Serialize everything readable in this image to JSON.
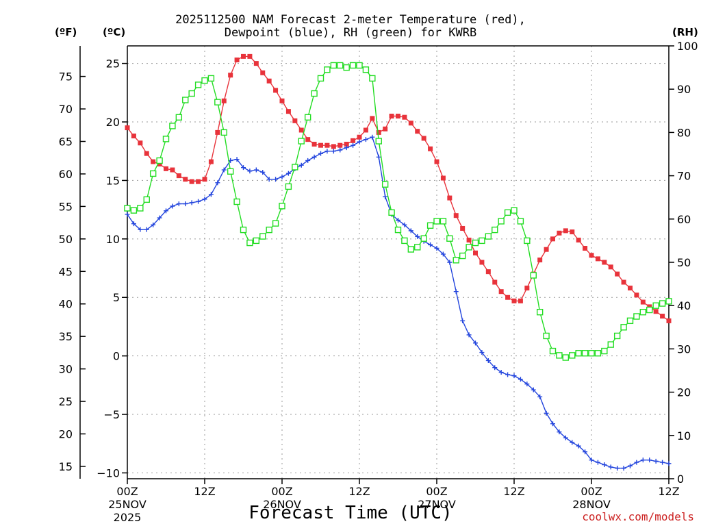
{
  "chart_data": {
    "type": "line",
    "title_line1": "2025112500 NAM Forecast 2-meter Temperature (red),",
    "title_line2": "Dewpoint (blue), RH (green) for KWRB",
    "xlabel": "Forecast Time (UTC)",
    "credit": "coolwx.com/models",
    "units": {
      "fahrenheit": "(ºF)",
      "celsius": "(ºC)",
      "rh": "(RH)"
    },
    "x_range_hours": [
      0,
      84
    ],
    "celsius_ticks": [
      "25",
      "20",
      "15",
      "10",
      "5",
      "0",
      "−5",
      "−10"
    ],
    "celsius_values": [
      25,
      20,
      15,
      10,
      5,
      0,
      -5,
      -10
    ],
    "ylim_celsius": [
      -10.5,
      26.5
    ],
    "fahrenheit_ticks": [
      "75",
      "70",
      "65",
      "60",
      "55",
      "50",
      "45",
      "40",
      "35",
      "30",
      "25",
      "20",
      "15"
    ],
    "fahrenheit_values": [
      75,
      70,
      65,
      60,
      55,
      50,
      45,
      40,
      35,
      30,
      25,
      20,
      15
    ],
    "rh_ticks": [
      "100",
      "90",
      "80",
      "70",
      "60",
      "50",
      "40",
      "30",
      "20",
      "10",
      "0"
    ],
    "rh_values": [
      100,
      90,
      80,
      70,
      60,
      50,
      40,
      30,
      20,
      10,
      0
    ],
    "ylim_rh": [
      0,
      100
    ],
    "x_ticks": [
      {
        "hour": 0,
        "label": "00Z",
        "date": "25NOV",
        "year": "2025"
      },
      {
        "hour": 12,
        "label": "12Z",
        "date": "",
        "year": ""
      },
      {
        "hour": 24,
        "label": "00Z",
        "date": "26NOV",
        "year": ""
      },
      {
        "hour": 36,
        "label": "12Z",
        "date": "",
        "year": ""
      },
      {
        "hour": 48,
        "label": "00Z",
        "date": "27NOV",
        "year": ""
      },
      {
        "hour": 60,
        "label": "12Z",
        "date": "",
        "year": ""
      },
      {
        "hour": 72,
        "label": "00Z",
        "date": "28NOV",
        "year": ""
      },
      {
        "hour": 84,
        "label": "12Z",
        "date": "",
        "year": ""
      }
    ],
    "series": [
      {
        "name": "Temperature",
        "unit": "C",
        "color": "#e8333b",
        "marker": "filled-square",
        "x": [
          0,
          1,
          2,
          3,
          4,
          5,
          6,
          7,
          8,
          9,
          10,
          11,
          12,
          13,
          14,
          15,
          16,
          17,
          18,
          19,
          20,
          21,
          22,
          23,
          24,
          25,
          26,
          27,
          28,
          29,
          30,
          31,
          32,
          33,
          34,
          35,
          36,
          37,
          38,
          39,
          40,
          41,
          42,
          43,
          44,
          45,
          46,
          47,
          48,
          49,
          50,
          51,
          52,
          53,
          54,
          55,
          56,
          57,
          58,
          59,
          60,
          61,
          62,
          63,
          64,
          65,
          66,
          67,
          68,
          69,
          70,
          71,
          72,
          73,
          74,
          75,
          76,
          77,
          78,
          79,
          80,
          81,
          82,
          83,
          84
        ],
        "values": [
          19.5,
          18.8,
          18.2,
          17.3,
          16.6,
          16.4,
          16.0,
          15.9,
          15.4,
          15.1,
          14.9,
          14.9,
          15.1,
          16.6,
          19.1,
          21.8,
          24.0,
          25.3,
          25.6,
          25.6,
          25.0,
          24.2,
          23.5,
          22.7,
          21.8,
          20.9,
          20.1,
          19.3,
          18.5,
          18.1,
          18.0,
          18.0,
          17.9,
          18.0,
          18.1,
          18.4,
          18.7,
          19.3,
          20.3,
          19.1,
          19.4,
          20.5,
          20.5,
          20.4,
          19.9,
          19.2,
          18.6,
          17.7,
          16.6,
          15.2,
          13.5,
          12.0,
          10.9,
          9.9,
          8.8,
          8.0,
          7.2,
          6.3,
          5.5,
          5.0,
          4.7,
          4.7,
          5.8,
          7.0,
          8.2,
          9.1,
          10.0,
          10.5,
          10.7,
          10.6,
          9.9,
          9.2,
          8.6,
          8.3,
          8.0,
          7.6,
          7.0,
          6.3,
          5.8,
          5.2,
          4.6,
          4.2,
          3.8,
          3.4,
          3.0
        ]
      },
      {
        "name": "Dewpoint",
        "unit": "C",
        "color": "#2244dd",
        "marker": "plus",
        "x": [
          0,
          1,
          2,
          3,
          4,
          5,
          6,
          7,
          8,
          9,
          10,
          11,
          12,
          13,
          14,
          15,
          16,
          17,
          18,
          19,
          20,
          21,
          22,
          23,
          24,
          25,
          26,
          27,
          28,
          29,
          30,
          31,
          32,
          33,
          34,
          35,
          36,
          37,
          38,
          39,
          40,
          41,
          42,
          43,
          44,
          45,
          46,
          47,
          48,
          49,
          50,
          51,
          52,
          53,
          54,
          55,
          56,
          57,
          58,
          59,
          60,
          61,
          62,
          63,
          64,
          65,
          66,
          67,
          68,
          69,
          70,
          71,
          72,
          73,
          74,
          75,
          76,
          77,
          78,
          79,
          80,
          81,
          82,
          83,
          84
        ],
        "values": [
          12.1,
          11.3,
          10.8,
          10.8,
          11.2,
          11.8,
          12.4,
          12.8,
          13.0,
          13.0,
          13.1,
          13.2,
          13.4,
          13.8,
          14.8,
          15.9,
          16.7,
          16.8,
          16.1,
          15.8,
          15.9,
          15.7,
          15.1,
          15.1,
          15.3,
          15.6,
          16.0,
          16.3,
          16.7,
          17.0,
          17.3,
          17.5,
          17.5,
          17.6,
          17.8,
          18.0,
          18.3,
          18.5,
          18.7,
          17.0,
          13.6,
          12.1,
          11.6,
          11.2,
          10.7,
          10.2,
          9.8,
          9.5,
          9.2,
          8.7,
          8.0,
          5.5,
          3.0,
          1.8,
          1.1,
          0.3,
          -0.4,
          -1.0,
          -1.4,
          -1.6,
          -1.7,
          -2.0,
          -2.4,
          -2.9,
          -3.5,
          -4.9,
          -5.8,
          -6.5,
          -7.0,
          -7.4,
          -7.7,
          -8.2,
          -8.9,
          -9.1,
          -9.3,
          -9.5,
          -9.6,
          -9.6,
          -9.4,
          -9.1,
          -8.9,
          -8.9,
          -9.0,
          -9.1,
          -9.2
        ]
      },
      {
        "name": "RH",
        "unit": "%",
        "color": "#22dd22",
        "marker": "open-square",
        "x": [
          0,
          1,
          2,
          3,
          4,
          5,
          6,
          7,
          8,
          9,
          10,
          11,
          12,
          13,
          14,
          15,
          16,
          17,
          18,
          19,
          20,
          21,
          22,
          23,
          24,
          25,
          26,
          27,
          28,
          29,
          30,
          31,
          32,
          33,
          34,
          35,
          36,
          37,
          38,
          39,
          40,
          41,
          42,
          43,
          44,
          45,
          46,
          47,
          48,
          49,
          50,
          51,
          52,
          53,
          54,
          55,
          56,
          57,
          58,
          59,
          60,
          61,
          62,
          63,
          64,
          65,
          66,
          67,
          68,
          69,
          70,
          71,
          72,
          73,
          74,
          75,
          76,
          77,
          78,
          79,
          80,
          81,
          82,
          83,
          84
        ],
        "values": [
          62.5,
          62.0,
          62.5,
          64.5,
          70.5,
          73.5,
          78.5,
          81.5,
          83.5,
          87.5,
          89.0,
          91.0,
          92.0,
          92.5,
          87.0,
          80.0,
          71.0,
          64.0,
          57.5,
          54.5,
          55.0,
          56.0,
          57.5,
          59.0,
          63.0,
          67.5,
          72.0,
          78.0,
          83.5,
          89.0,
          92.5,
          94.5,
          95.5,
          95.5,
          95.0,
          95.5,
          95.5,
          94.5,
          92.5,
          78.0,
          68.0,
          61.5,
          57.5,
          55.0,
          53.0,
          53.5,
          55.5,
          58.5,
          59.5,
          59.5,
          55.5,
          50.5,
          51.5,
          53.5,
          54.5,
          55.0,
          56.0,
          57.5,
          59.5,
          61.5,
          62.0,
          59.5,
          55.0,
          47.0,
          38.5,
          33.0,
          29.5,
          28.5,
          28.0,
          28.5,
          29.0,
          29.0,
          29.0,
          29.0,
          29.5,
          31.0,
          33.0,
          35.0,
          36.5,
          37.5,
          38.5,
          39.0,
          40.0,
          40.5,
          41.0
        ]
      }
    ]
  }
}
